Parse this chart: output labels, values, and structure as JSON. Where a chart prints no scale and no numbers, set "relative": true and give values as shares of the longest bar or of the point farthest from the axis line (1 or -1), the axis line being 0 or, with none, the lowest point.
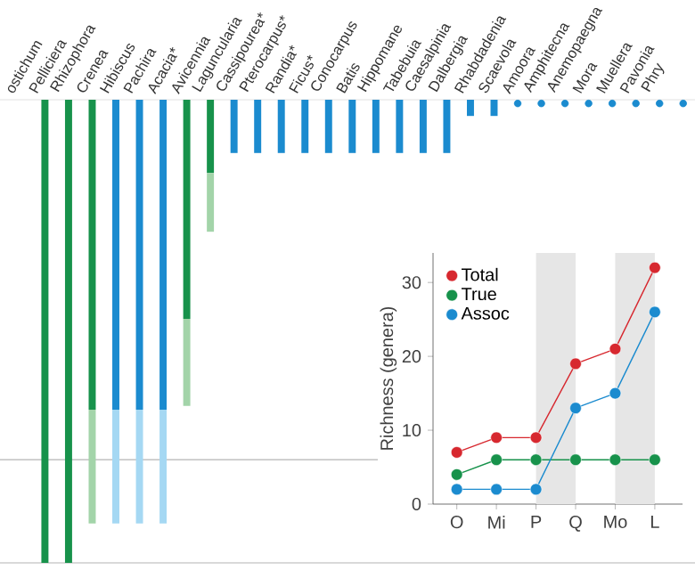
{
  "chart_data": [
    {
      "type": "bar",
      "relative": true,
      "stacked": true,
      "categories": [
        "ostichum",
        "Pelliciera",
        "Rhizophora",
        "Crenea",
        "Hibiscus",
        "Pachira",
        "Acacia*",
        "Avicennia",
        "Laguncularia",
        "Cassipourea*",
        "Pterocarpus*",
        "Randia*",
        "Ficus*",
        "Conocarpus",
        "Batis",
        "Hippomane",
        "Tabebuia",
        "Caesalpinia",
        "Dalbergia",
        "Rhabdadenia",
        "Scaevola",
        "Amoora",
        "Amphitecna",
        "Anemopaegna",
        "Mora",
        "Muellera",
        "Pavonia",
        "Phry",
        null
      ],
      "series": [
        {
          "colors": [
            "#17924b",
            "#17924b",
            "#17924b",
            "#17924b",
            "#1b8bcf",
            "#1b8bcf",
            "#1b8bcf",
            "#17924b",
            "#17924b",
            "#1b8bcf",
            "#1b8bcf",
            "#1b8bcf",
            "#1b8bcf",
            "#1b8bcf",
            "#1b8bcf",
            "#1b8bcf",
            "#1b8bcf",
            "#1b8bcf",
            "#1b8bcf",
            "#1b8bcf",
            "#1b8bcf",
            "#1b8bcf",
            "#1b8bcf",
            "#1b8bcf",
            "#1b8bcf",
            "#1b8bcf",
            "#1b8bcf",
            "#1b8bcf",
            "#1b8bcf"
          ],
          "values": [
            null,
            -1,
            -1,
            -0.669,
            -0.669,
            -0.669,
            -0.669,
            -0.473,
            -0.158,
            -0.115,
            -0.115,
            -0.115,
            -0.115,
            -0.115,
            -0.115,
            -0.115,
            -0.115,
            -0.115,
            -0.115,
            -0.035,
            -0.035,
            null,
            null,
            null,
            null,
            null,
            null,
            null,
            null
          ]
        },
        {
          "colors": [
            "#a3d4a9",
            "#a3d4a9",
            "#a3d4a9",
            "#a3d4a9",
            "#a5d8f3",
            "#a5d8f3",
            "#a5d8f3",
            "#a3d4a9",
            "#a3d4a9",
            "#a5d8f3",
            "#a5d8f3",
            "#a5d8f3",
            "#a5d8f3",
            "#a5d8f3",
            "#a5d8f3",
            "#a5d8f3",
            "#a5d8f3",
            "#a5d8f3",
            "#a5d8f3",
            "#a5d8f3",
            "#a5d8f3",
            "#a5d8f3",
            "#a5d8f3",
            "#a5d8f3",
            "#a5d8f3",
            "#a5d8f3",
            "#a5d8f3",
            "#a5d8f3",
            "#a5d8f3"
          ],
          "values": [
            null,
            null,
            null,
            -0.246,
            -0.246,
            -0.246,
            -0.246,
            -0.188,
            -0.127,
            null,
            null,
            null,
            null,
            null,
            null,
            null,
            null,
            null,
            null,
            null,
            null,
            null,
            null,
            null,
            null,
            null,
            null,
            null,
            null
          ]
        },
        {
          "type": "scatter",
          "color": "#1b8bcf",
          "values": [
            null,
            null,
            null,
            null,
            null,
            null,
            null,
            null,
            null,
            null,
            null,
            null,
            null,
            null,
            null,
            null,
            null,
            null,
            null,
            null,
            null,
            -0.008,
            -0.008,
            -0.008,
            -0.008,
            -0.008,
            -0.008,
            -0.008,
            -0.008
          ]
        }
      ],
      "ref_lines": [
        {
          "axis": "y",
          "value": -0.777,
          "color": "#b4b4b4"
        },
        {
          "axis": "y",
          "value": -1,
          "color": "#b4b4b4"
        }
      ]
    },
    {
      "type": "line",
      "categories": [
        "O",
        "Mi",
        "P",
        "Q",
        "Mo",
        "L"
      ],
      "ylabel": "Richness (genera)",
      "ylim": [
        0,
        34
      ],
      "yticks": [
        0,
        10,
        20,
        30
      ],
      "legend": "top left",
      "marker": "circle",
      "line_style": "solid",
      "bands": [
        {
          "axis": "x",
          "from": "P",
          "to": "Q",
          "color": "#e6e6e6"
        },
        {
          "axis": "x",
          "from": "Mo",
          "to": "L",
          "color": "#e6e6e6"
        }
      ],
      "series": [
        {
          "name": "Total",
          "color": "#d7282f",
          "values": [
            7,
            9,
            9,
            19,
            21,
            32
          ]
        },
        {
          "name": "True",
          "color": "#17924b",
          "values": [
            4,
            6,
            6,
            6,
            6,
            6
          ]
        },
        {
          "name": "Assoc",
          "color": "#1b8bcf",
          "values": [
            2,
            2,
            2,
            13,
            15,
            26
          ]
        }
      ]
    }
  ]
}
